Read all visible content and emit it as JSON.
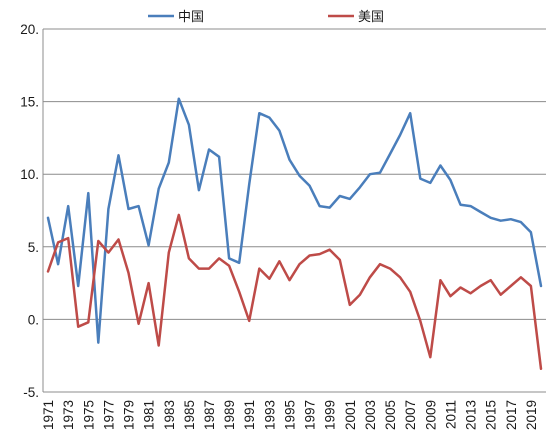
{
  "chart_data": {
    "type": "line",
    "x": [
      "1971",
      "1972",
      "1973",
      "1974",
      "1975",
      "1976",
      "1977",
      "1978",
      "1979",
      "1980",
      "1981",
      "1982",
      "1983",
      "1984",
      "1985",
      "1986",
      "1987",
      "1988",
      "1989",
      "1990",
      "1991",
      "1992",
      "1993",
      "1994",
      "1995",
      "1996",
      "1997",
      "1998",
      "1999",
      "2000",
      "2001",
      "2002",
      "2003",
      "2004",
      "2005",
      "2006",
      "2007",
      "2008",
      "2009",
      "2010",
      "2011",
      "2012",
      "2013",
      "2014",
      "2015",
      "2016",
      "2017",
      "2018",
      "2019",
      "2020"
    ],
    "x_tick_labels": [
      "1971",
      "1973",
      "1975",
      "1977",
      "1979",
      "1981",
      "1983",
      "1985",
      "1987",
      "1989",
      "1991",
      "1993",
      "1995",
      "1997",
      "1999",
      "2001",
      "2003",
      "2005",
      "2007",
      "2009",
      "2011",
      "2013",
      "2015",
      "2017",
      "2019"
    ],
    "y_tick_labels": [
      "-5.",
      "0.",
      "5.",
      "10.",
      "15.",
      "20."
    ],
    "y_ticks": [
      -5,
      0,
      5,
      10,
      15,
      20
    ],
    "ylim": [
      -5,
      20
    ],
    "grid": "horizontal",
    "legend_position": "top-center",
    "series": [
      {
        "name": "中国",
        "color": "#4a7ebb",
        "values": [
          7.0,
          3.8,
          7.8,
          2.3,
          8.7,
          -1.6,
          7.6,
          11.3,
          7.6,
          7.8,
          5.1,
          9.0,
          10.8,
          15.2,
          13.4,
          8.9,
          11.7,
          11.2,
          4.2,
          3.9,
          9.3,
          14.2,
          13.9,
          13.0,
          11.0,
          9.9,
          9.2,
          7.8,
          7.7,
          8.5,
          8.3,
          9.1,
          10.0,
          10.1,
          11.4,
          12.7,
          14.2,
          9.7,
          9.4,
          10.6,
          9.6,
          7.9,
          7.8,
          7.4,
          7.0,
          6.8,
          6.9,
          6.7,
          6.0,
          2.3
        ]
      },
      {
        "name": "美国",
        "color": "#be4b48",
        "values": [
          3.3,
          5.3,
          5.6,
          -0.5,
          -0.2,
          5.4,
          4.6,
          5.5,
          3.2,
          -0.3,
          2.5,
          -1.8,
          4.6,
          7.2,
          4.2,
          3.5,
          3.5,
          4.2,
          3.7,
          1.9,
          -0.1,
          3.5,
          2.8,
          4.0,
          2.7,
          3.8,
          4.4,
          4.5,
          4.8,
          4.1,
          1.0,
          1.7,
          2.9,
          3.8,
          3.5,
          2.9,
          1.9,
          -0.1,
          -2.6,
          2.7,
          1.6,
          2.2,
          1.8,
          2.3,
          2.7,
          1.7,
          2.3,
          2.9,
          2.3,
          -3.4
        ]
      }
    ]
  }
}
